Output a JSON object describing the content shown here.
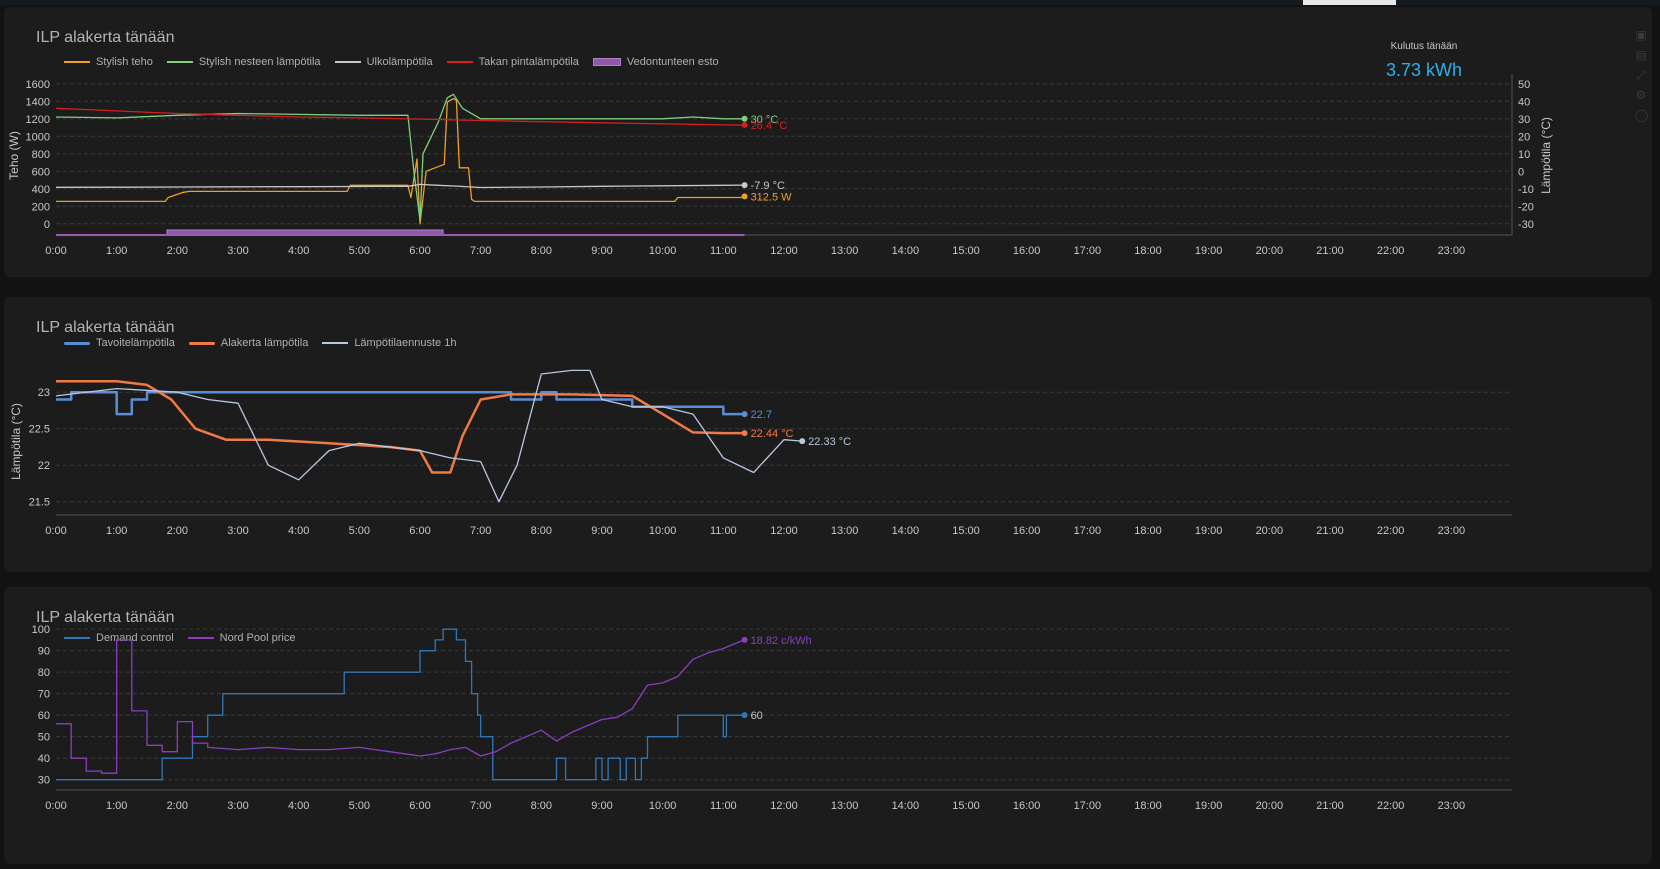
{
  "colors": {
    "background": "#121212",
    "panel": "#1c1c1c",
    "grid": "#3a3a3a",
    "axis_text": "#c8c8c8",
    "accent_stat": "#2bb0e8"
  },
  "stat": {
    "label": "Kulutus tänään",
    "value": "3.73 kWh"
  },
  "panel_icons": [
    "plus-square-icon",
    "minus-square-icon",
    "expand-icon",
    "settings-icon",
    "lock-icon"
  ],
  "chart_data": [
    {
      "type": "line",
      "title": "ILP alakerta tänään",
      "xlabel": "",
      "x_ticks": [
        "0:00",
        "1:00",
        "2:00",
        "3:00",
        "4:00",
        "5:00",
        "6:00",
        "7:00",
        "8:00",
        "9:00",
        "10:00",
        "11:00",
        "12:00",
        "13:00",
        "14:00",
        "15:00",
        "16:00",
        "17:00",
        "18:00",
        "19:00",
        "20:00",
        "21:00",
        "22:00",
        "23:00"
      ],
      "xlim": [
        0,
        24
      ],
      "ylabel": "Teho (W)",
      "ylim": [
        -60,
        1620
      ],
      "y_ticks": [
        0,
        200,
        400,
        600,
        800,
        1000,
        1200,
        1400,
        1600
      ],
      "ylabel_right": "Lämpötila (°C)",
      "ylim_right": [
        -33,
        51
      ],
      "y_ticks_right": [
        -30,
        -20,
        -10,
        0,
        10,
        20,
        30,
        40,
        50
      ],
      "grid": true,
      "legend_position": "top-left",
      "series": [
        {
          "name": "Stylish teho",
          "color": "#f0a020",
          "axis": "left",
          "end_label": "312.5 W",
          "x": [
            0,
            1.8,
            1.85,
            2.1,
            2.2,
            4.8,
            4.85,
            5.8,
            5.85,
            5.95,
            6.0,
            6.1,
            6.4,
            6.45,
            6.55,
            6.6,
            6.65,
            6.8,
            6.85,
            6.9,
            7.5,
            10.2,
            10.25,
            11.0,
            11.3,
            11.35
          ],
          "y": [
            255,
            255,
            300,
            360,
            370,
            370,
            440,
            440,
            300,
            740,
            0,
            600,
            680,
            1390,
            1430,
            1410,
            640,
            640,
            280,
            255,
            255,
            255,
            300,
            300,
            300,
            312.5
          ]
        },
        {
          "name": "Stylish nesteen lämpötila",
          "color": "#7fd07f",
          "axis": "right",
          "end_label": "30 °C",
          "x": [
            0,
            1,
            2,
            3,
            4,
            5,
            5.8,
            5.9,
            6.0,
            6.05,
            6.3,
            6.45,
            6.55,
            6.7,
            7,
            8,
            9,
            10,
            10.5,
            11,
            11.35
          ],
          "y": [
            31,
            30.5,
            32,
            33,
            32.5,
            32,
            32,
            0,
            -28,
            10,
            28,
            42,
            44,
            36,
            30,
            30,
            30,
            30,
            31,
            30,
            30
          ]
        },
        {
          "name": "Ulkolämpötila",
          "color": "#c8c8c8",
          "axis": "right",
          "end_label": "-7.9 °C",
          "x": [
            0,
            1,
            2,
            3,
            4,
            5,
            5.8,
            6.0,
            6.3,
            6.6,
            7.0,
            8,
            9,
            10,
            11,
            11.35
          ],
          "y": [
            -9.2,
            -9.1,
            -9.0,
            -8.9,
            -8.8,
            -8.7,
            -8.6,
            -7.5,
            -8.0,
            -8.5,
            -9.3,
            -9.0,
            -8.6,
            -8.3,
            -8.0,
            -7.9
          ]
        },
        {
          "name": "Takan pintalämpötila",
          "color": "#d42020",
          "axis": "right",
          "end_label": "26.4 °C",
          "x": [
            0,
            1,
            2,
            3,
            4,
            5,
            6,
            7,
            8,
            9,
            10,
            11,
            11.35
          ],
          "y": [
            36,
            34.5,
            33,
            32,
            31,
            30.5,
            29.8,
            29,
            28.3,
            27.7,
            27.1,
            26.5,
            26.4
          ]
        },
        {
          "name": "Vedontunteen esto",
          "color": "#9b59b6",
          "axis": "left",
          "kind": "state",
          "x": [
            0,
            1.83,
            1.83,
            6.38,
            6.38,
            11.35
          ],
          "y": [
            0,
            0,
            1,
            1,
            0,
            0
          ]
        }
      ]
    },
    {
      "type": "line",
      "title": "ILP alakerta tänään",
      "xlabel": "",
      "x_ticks": [
        "0:00",
        "1:00",
        "2:00",
        "3:00",
        "4:00",
        "5:00",
        "6:00",
        "7:00",
        "8:00",
        "9:00",
        "10:00",
        "11:00",
        "12:00",
        "13:00",
        "14:00",
        "15:00",
        "16:00",
        "17:00",
        "18:00",
        "19:00",
        "20:00",
        "21:00",
        "22:00",
        "23:00"
      ],
      "xlim": [
        0,
        24
      ],
      "ylabel": "Lämpötila (°C)",
      "ylim": [
        21.4,
        23.25
      ],
      "y_ticks": [
        21.5,
        22,
        22.5,
        23
      ],
      "grid": true,
      "legend_position": "top-left",
      "series": [
        {
          "name": "Tavoitelämpötila",
          "color": "#5b8dd6",
          "end_label": "22.7",
          "x": [
            0,
            0.25,
            0.25,
            1.0,
            1.0,
            1.25,
            1.25,
            1.5,
            1.5,
            7.5,
            7.5,
            8.0,
            8.0,
            8.25,
            8.25,
            9.5,
            9.5,
            10.5,
            10.5,
            11.0,
            11.0,
            11.35
          ],
          "y": [
            22.9,
            22.9,
            23.0,
            23.0,
            22.7,
            22.7,
            22.9,
            22.9,
            23.0,
            23.0,
            22.9,
            22.9,
            23.0,
            23.0,
            22.9,
            22.9,
            22.8,
            22.8,
            22.8,
            22.8,
            22.7,
            22.7
          ]
        },
        {
          "name": "Alakerta lämpötila",
          "color": "#f07a46",
          "end_label": "22.44 °C",
          "x": [
            0,
            1,
            1.5,
            1.9,
            2.3,
            2.8,
            3.5,
            4.5,
            5.5,
            6.0,
            6.2,
            6.5,
            6.7,
            7.0,
            7.5,
            8.5,
            9.5,
            10.0,
            10.5,
            11.0,
            11.35
          ],
          "y": [
            23.15,
            23.15,
            23.1,
            22.9,
            22.5,
            22.35,
            22.35,
            22.3,
            22.25,
            22.2,
            21.9,
            21.9,
            22.4,
            22.9,
            22.97,
            22.97,
            22.95,
            22.7,
            22.45,
            22.44,
            22.44
          ]
        },
        {
          "name": "Lämpötilaennuste 1h",
          "color": "#b8c8e0",
          "end_label": "22.33 °C",
          "x": [
            0,
            1,
            2,
            2.5,
            3,
            3.5,
            4,
            4.5,
            5,
            6,
            6.5,
            7,
            7.3,
            7.6,
            8,
            8.5,
            8.8,
            9,
            9.5,
            10,
            10.5,
            11,
            11.5,
            12,
            12.3
          ],
          "y": [
            22.95,
            23.05,
            23.0,
            22.9,
            22.85,
            22.0,
            21.8,
            22.2,
            22.3,
            22.2,
            22.1,
            22.05,
            21.5,
            22.0,
            23.25,
            23.3,
            23.3,
            22.9,
            22.8,
            22.8,
            22.7,
            22.1,
            21.9,
            22.35,
            22.33
          ]
        }
      ]
    },
    {
      "type": "line",
      "title": "ILP alakerta tänään",
      "xlabel": "",
      "ylabel": "",
      "x_ticks": [
        "0:00",
        "1:00",
        "2:00",
        "3:00",
        "4:00",
        "5:00",
        "6:00",
        "7:00",
        "8:00",
        "9:00",
        "10:00",
        "11:00",
        "12:00",
        "13:00",
        "14:00",
        "15:00",
        "16:00",
        "17:00",
        "18:00",
        "19:00",
        "20:00",
        "21:00",
        "22:00",
        "23:00"
      ],
      "xlim": [
        0,
        24
      ],
      "ylim": [
        28,
        101
      ],
      "y_ticks": [
        30,
        40,
        50,
        60,
        70,
        80,
        90,
        100
      ],
      "grid": true,
      "legend_position": "top-left",
      "series": [
        {
          "name": "Demand control",
          "color": "#2f78b8",
          "end_label": "60",
          "x": [
            0,
            1.75,
            1.75,
            2.25,
            2.25,
            2.5,
            2.5,
            2.75,
            2.75,
            4.75,
            4.75,
            6.0,
            6.0,
            6.25,
            6.25,
            6.38,
            6.38,
            6.6,
            6.6,
            6.75,
            6.75,
            6.85,
            6.85,
            6.95,
            6.95,
            7.0,
            7.0,
            7.2,
            7.2,
            8.25,
            8.25,
            8.4,
            8.4,
            8.9,
            8.9,
            9.0,
            9.0,
            9.1,
            9.1,
            9.3,
            9.3,
            9.4,
            9.4,
            9.55,
            9.55,
            9.65,
            9.65,
            9.75,
            9.75,
            10.25,
            10.25,
            11.0,
            11.0,
            11.05,
            11.05,
            11.35
          ],
          "y": [
            30,
            30,
            40,
            40,
            50,
            50,
            60,
            60,
            70,
            70,
            80,
            80,
            90,
            90,
            95,
            95,
            100,
            100,
            95,
            95,
            85,
            85,
            70,
            70,
            60,
            60,
            50,
            50,
            30,
            30,
            40,
            40,
            30,
            30,
            40,
            40,
            30,
            30,
            40,
            40,
            30,
            30,
            40,
            40,
            30,
            30,
            40,
            40,
            50,
            50,
            60,
            60,
            50,
            50,
            60,
            60
          ]
        },
        {
          "name": "Nord Pool price",
          "color": "#8a3fbf",
          "end_label": "18.82 c/kWh",
          "x": [
            0,
            0.25,
            0.25,
            0.5,
            0.5,
            0.75,
            0.75,
            1.0,
            1.0,
            1.25,
            1.25,
            1.5,
            1.5,
            1.75,
            1.75,
            2.0,
            2.0,
            2.25,
            2.25,
            2.5,
            2.5,
            3,
            3.5,
            4,
            4.5,
            5,
            5.5,
            6,
            6.25,
            6.5,
            6.75,
            7.0,
            7.25,
            7.5,
            7.75,
            8.0,
            8.25,
            8.5,
            8.75,
            9.0,
            9.25,
            9.5,
            9.75,
            10.0,
            10.25,
            10.5,
            10.75,
            11.0,
            11.25,
            11.35
          ],
          "y": [
            56,
            56,
            40,
            40,
            34,
            34,
            33,
            33,
            95,
            95,
            62,
            62,
            46,
            46,
            43,
            43,
            57,
            57,
            47,
            47,
            45,
            44,
            45,
            44,
            44,
            45,
            43,
            41,
            42,
            44,
            45,
            41,
            43,
            47,
            50,
            53,
            48,
            52,
            55,
            58,
            59,
            63,
            74,
            75,
            78,
            86,
            89,
            91,
            94,
            95
          ]
        }
      ]
    }
  ]
}
